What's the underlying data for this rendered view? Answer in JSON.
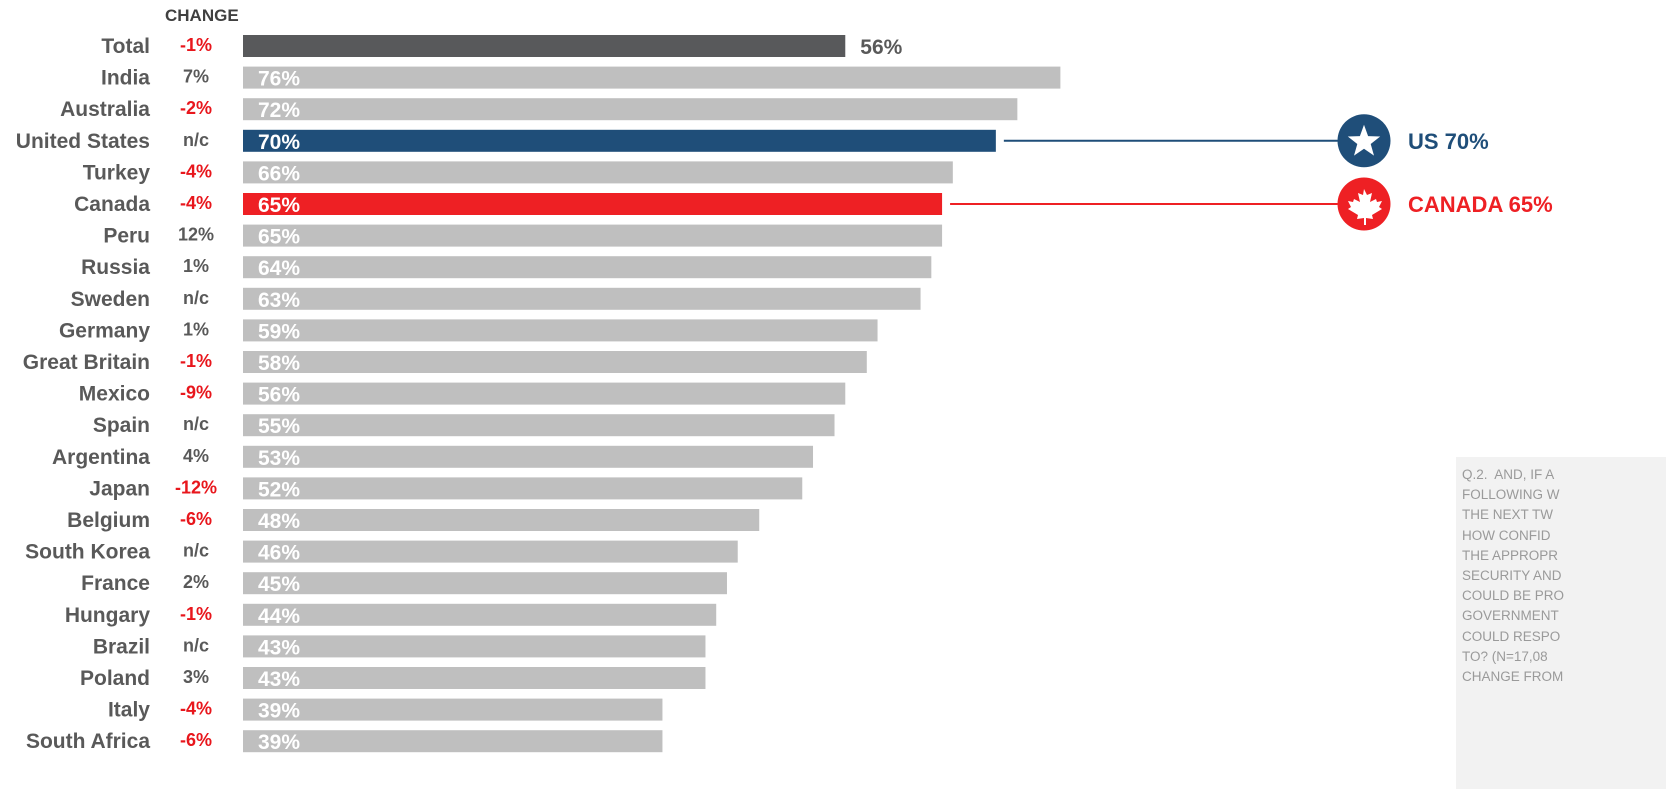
{
  "chart_data": {
    "type": "bar",
    "orientation": "horizontal",
    "change_header": "CHANGE",
    "categories": [
      "Total",
      "India",
      "Australia",
      "United States",
      "Turkey",
      "Canada",
      "Peru",
      "Russia",
      "Sweden",
      "Germany",
      "Great Britain",
      "Mexico",
      "Spain",
      "Argentina",
      "Japan",
      "Belgium",
      "South Korea",
      "France",
      "Hungary",
      "Brazil",
      "Poland",
      "Italy",
      "South Africa"
    ],
    "values": [
      56,
      76,
      72,
      70,
      66,
      65,
      65,
      64,
      63,
      59,
      58,
      56,
      55,
      53,
      52,
      48,
      46,
      45,
      44,
      43,
      43,
      39,
      39
    ],
    "value_labels": [
      "56%",
      "76%",
      "72%",
      "70%",
      "66%",
      "65%",
      "65%",
      "64%",
      "63%",
      "59%",
      "58%",
      "56%",
      "55%",
      "53%",
      "52%",
      "48%",
      "46%",
      "45%",
      "44%",
      "43%",
      "43%",
      "39%",
      "39%"
    ],
    "changes": [
      "-1%",
      "7%",
      "-2%",
      "n/c",
      "-4%",
      "-4%",
      "12%",
      "1%",
      "n/c",
      "1%",
      "-1%",
      "-9%",
      "n/c",
      "4%",
      "-12%",
      "-6%",
      "n/c",
      "2%",
      "-1%",
      "n/c",
      "3%",
      "-4%",
      "-6%"
    ],
    "xlim": [
      0,
      100
    ],
    "grid": false,
    "legend": "none",
    "colors": {
      "default_bar": "#bfbfbf",
      "total_bar": "#58595b",
      "us_bar": "#1f4e79",
      "canada_bar": "#ee2024",
      "negative_change": "#e8161c",
      "neutral_change": "#595959"
    },
    "highlights": [
      {
        "category": "United States",
        "label": "US 70%",
        "icon": "star-badge-icon",
        "color": "#1f4e79"
      },
      {
        "category": "Canada",
        "label": "CANADA 65%",
        "icon": "maple-leaf-badge-icon",
        "color": "#ee2024"
      }
    ]
  },
  "note": {
    "lines": [
      "Q.2.  AND, IF A",
      "FOLLOWING W",
      "THE NEXT TW",
      "HOW CONFID",
      "THE APPROPR",
      "SECURITY AND",
      "COULD BE PRO",
      "GOVERNMENT",
      "COULD RESPO",
      "TO? (N=17,08",
      "CHANGE FROM"
    ]
  }
}
